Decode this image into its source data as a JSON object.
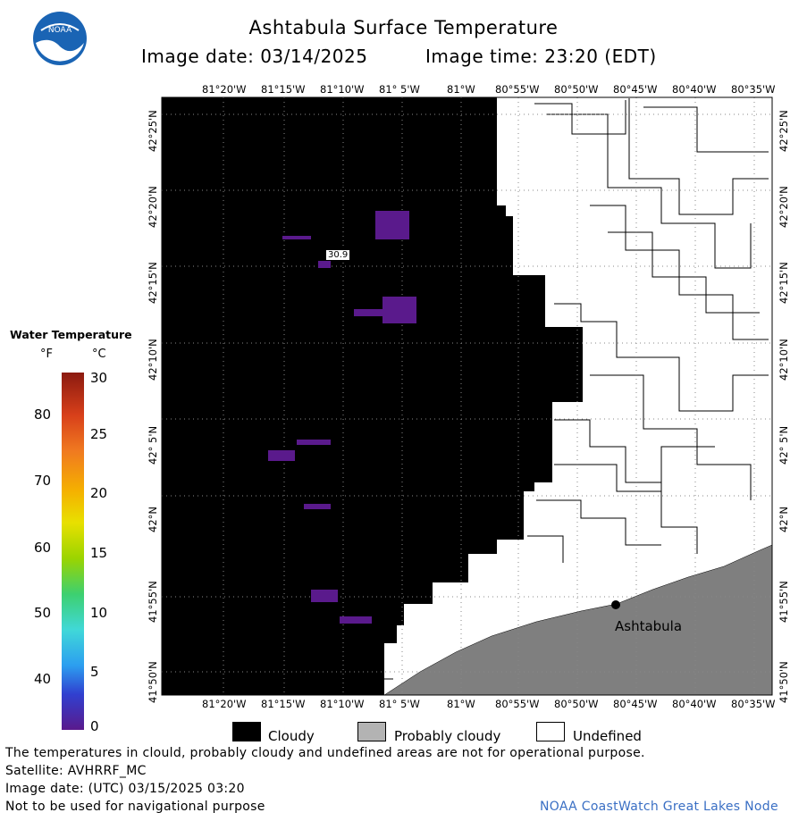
{
  "header": {
    "title": "Ashtabula Surface Temperature",
    "image_date": "Image date: 03/14/2025",
    "image_time": "Image time: 23:20 (EDT)"
  },
  "map": {
    "lon_labels": [
      "81°20'W",
      "81°15'W",
      "81°10'W",
      "81° 5'W",
      "81°W",
      "80°55'W",
      "80°50'W",
      "80°45'W",
      "80°40'W",
      "80°35'W"
    ],
    "lat_labels": [
      "42°25'N",
      "42°20'N",
      "42°15'N",
      "42°10'N",
      "42° 5'N",
      "42°N",
      "41°55'N",
      "41°50'N"
    ],
    "city": "Ashtabula",
    "temp_box": "30.9"
  },
  "colorbar": {
    "title": "Water Temperature",
    "unit_f": "°F",
    "unit_c": "°C",
    "f_ticks": [
      "80",
      "70",
      "60",
      "50",
      "40"
    ],
    "c_ticks": [
      "30",
      "25",
      "20",
      "15",
      "10",
      "5",
      "0"
    ]
  },
  "legend": {
    "cloudy": "Cloudy",
    "probably_cloudy": "Probably cloudy",
    "undefined": "Undefined",
    "colors": {
      "cloudy": "#000000",
      "probably_cloudy": "#b3b3b3",
      "undefined": "#ffffff",
      "land": "#7f7f7f"
    }
  },
  "footer": {
    "disclaimer": "The temperatures in clould, probably cloudy and undefined areas are not for operational purpose.",
    "satellite": "Satellite: AVHRRF_MC",
    "utc_date": "Image date: (UTC) 03/15/2025  03:20",
    "nav_warning": "Not to be used for navigational purpose",
    "credit": "NOAA CoastWatch Great Lakes Node"
  }
}
